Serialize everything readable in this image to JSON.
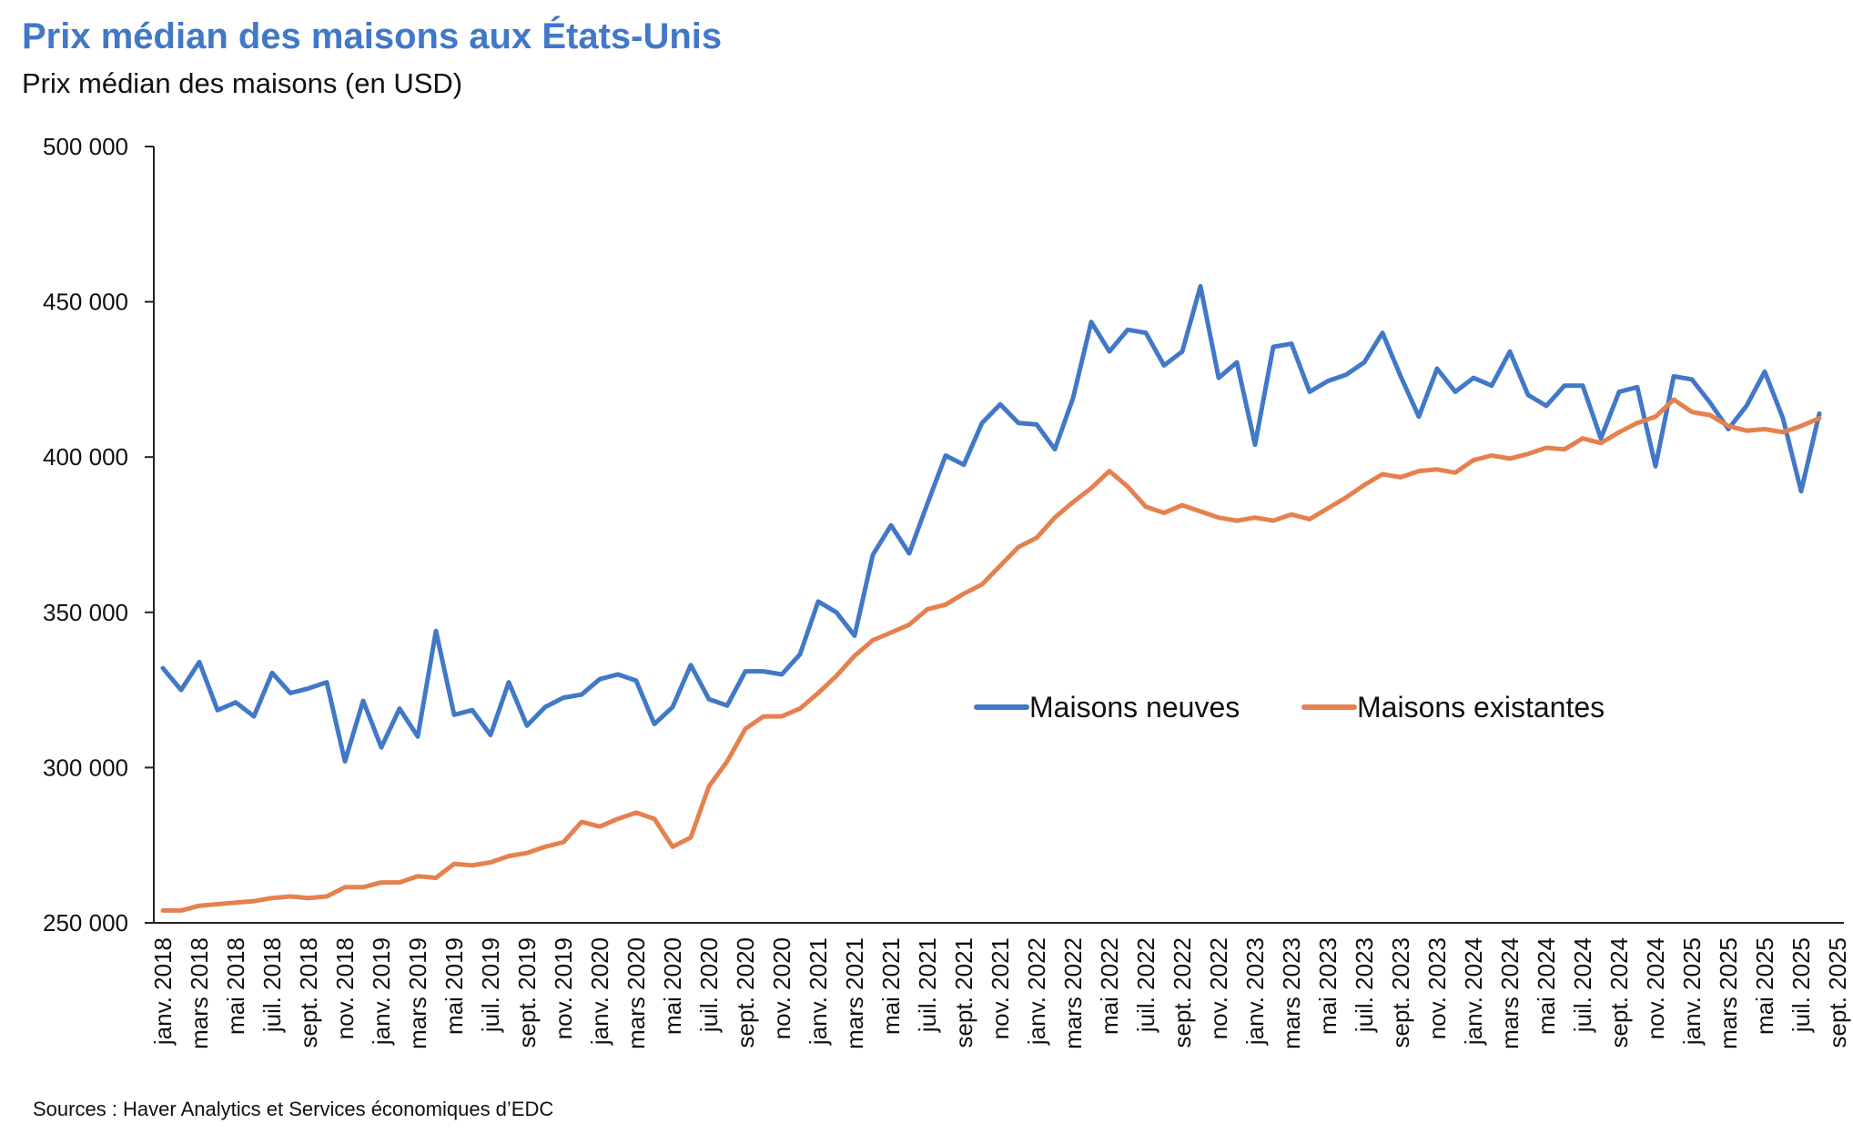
{
  "chart_data": {
    "type": "line",
    "title": "Prix médian des maisons aux États-Unis",
    "subtitle": "Prix médian des maisons (en USD)",
    "source": "Sources : Haver Analytics et Services économiques d’EDC",
    "ylim": [
      250000,
      500000
    ],
    "yticks": [
      250000,
      300000,
      350000,
      400000,
      450000,
      500000
    ],
    "ytick_labels": [
      "250 000",
      "300 000",
      "350 000",
      "400 000",
      "450 000",
      "500 000"
    ],
    "start_month": "2018-01",
    "xtick_labels": [
      "janv. 2018",
      "mars 2018",
      "mai 2018",
      "juil. 2018",
      "sept. 2018",
      "nov. 2018",
      "janv. 2019",
      "mars 2019",
      "mai 2019",
      "juil. 2019",
      "sept. 2019",
      "nov. 2019",
      "janv. 2020",
      "mars 2020",
      "mai 2020",
      "juil. 2020",
      "sept. 2020",
      "nov. 2020",
      "janv. 2021",
      "mars 2021",
      "mai 2021",
      "juil. 2021",
      "sept. 2021",
      "nov. 2021",
      "janv. 2022",
      "mars 2022",
      "mai 2022",
      "juil. 2022",
      "sept. 2022",
      "nov. 2022",
      "janv. 2023",
      "mars 2023",
      "mai 2023",
      "juil. 2023",
      "sept. 2023",
      "nov. 2023",
      "janv. 2024",
      "mars 2024",
      "mai 2024",
      "juil. 2024",
      "sept. 2024",
      "nov. 2024",
      "janv. 2025",
      "mars 2025",
      "mai 2025",
      "juil. 2025",
      "sept. 2025"
    ],
    "legend_position": "center-right",
    "grid": false,
    "series": [
      {
        "name": "Maisons neuves",
        "color": "#4178c8",
        "values": [
          332000,
          325000,
          334000,
          318500,
          321000,
          316500,
          330500,
          324000,
          325500,
          327500,
          302000,
          321500,
          306500,
          319000,
          310000,
          344000,
          317000,
          318500,
          310500,
          327500,
          313500,
          319500,
          322500,
          323500,
          328500,
          330000,
          328000,
          314000,
          319500,
          333000,
          322000,
          320000,
          331000,
          331000,
          330000,
          336500,
          353500,
          350000,
          342500,
          368500,
          378000,
          369000,
          385000,
          400500,
          397500,
          411000,
          417000,
          411000,
          410500,
          402500,
          419000,
          443500,
          434000,
          441000,
          440000,
          429500,
          434000,
          455000,
          425500,
          430500,
          404000,
          435500,
          436500,
          421000,
          424500,
          426500,
          430500,
          440000,
          426000,
          413000,
          428500,
          421000,
          425500,
          423000,
          434000,
          420000,
          416500,
          423000,
          423000,
          406000,
          421000,
          422500,
          397000,
          426000,
          425000,
          417500,
          409000,
          416500,
          427500,
          412500,
          389000,
          414000
        ]
      },
      {
        "name": "Maisons existantes",
        "color": "#e5814f",
        "values": [
          254000,
          254000,
          255500,
          256000,
          256500,
          257000,
          258000,
          258500,
          258000,
          258500,
          261500,
          261500,
          263000,
          263000,
          265000,
          264500,
          269000,
          268500,
          269500,
          271500,
          272500,
          274500,
          276000,
          282500,
          281000,
          283500,
          285500,
          283500,
          274500,
          277500,
          294000,
          302000,
          312500,
          316500,
          316500,
          319000,
          324000,
          329500,
          336000,
          341000,
          343500,
          346000,
          351000,
          352500,
          356000,
          359000,
          365000,
          371000,
          374000,
          380500,
          385500,
          390000,
          395500,
          390500,
          384000,
          382000,
          384500,
          382500,
          380500,
          379500,
          380500,
          379500,
          381500,
          380000,
          383500,
          387000,
          391000,
          394500,
          393500,
          395500,
          396000,
          395000,
          399000,
          400500,
          399500,
          401000,
          403000,
          402500,
          406000,
          404500,
          408000,
          411000,
          413000,
          418500,
          414500,
          413500,
          410000,
          408500,
          409000,
          408000,
          410000,
          412500
        ]
      }
    ]
  }
}
